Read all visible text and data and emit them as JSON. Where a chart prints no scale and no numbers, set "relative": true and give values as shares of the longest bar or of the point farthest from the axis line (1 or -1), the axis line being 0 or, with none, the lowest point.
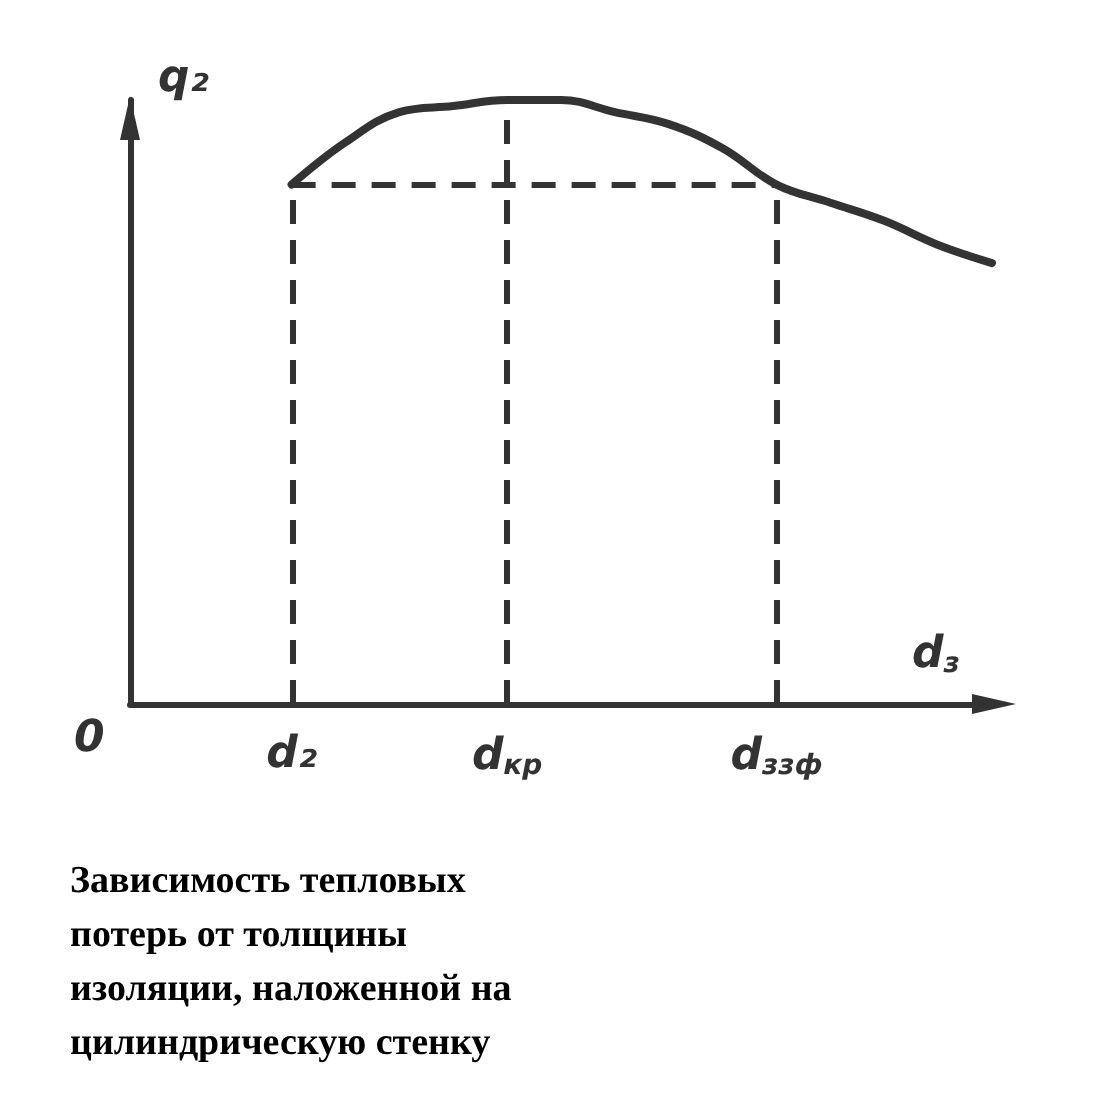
{
  "chart_data": {
    "type": "line",
    "title": "Зависимость тепловых потерь от толщины изоляции, наложенной на цилиндрическую стенку",
    "xlabel": "d$_{з}$",
    "ylabel": "q₂",
    "relative": true,
    "categories": [
      null,
      null,
      null,
      "d₂",
      null,
      null,
      null,
      "d$_{кр}$",
      null,
      null,
      null,
      null,
      "d$_{ззф}$",
      null,
      null,
      null,
      null
    ],
    "series": [
      {
        "color": "#333333",
        "values": [
          null,
          null,
          null,
          0.86,
          0.93,
          0.98,
          0.99,
          1,
          1,
          0.98,
          0.96,
          0.92,
          0.86,
          0.83,
          0.8,
          0.76,
          0.73
        ]
      }
    ],
    "ref_lines": [
      {
        "axis": "x",
        "value": "d₂",
        "line_style": "dashed"
      },
      {
        "axis": "x",
        "value": "d$_{кр}$",
        "line_style": "dashed"
      },
      {
        "axis": "x",
        "value": "d$_{ззф}$",
        "line_style": "dashed"
      },
      {
        "axis": "y",
        "value": 0.86,
        "line_style": "dashed"
      }
    ],
    "annotations": [
      "0"
    ],
    "marker": "none",
    "line_style": "solid",
    "grid": false
  }
}
